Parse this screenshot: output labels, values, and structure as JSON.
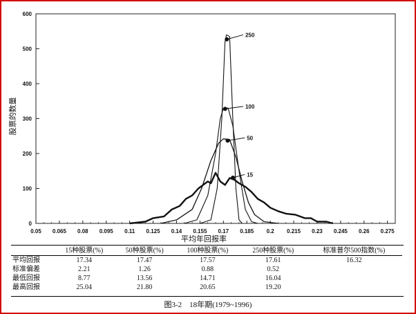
{
  "chart_data": {
    "type": "line",
    "xlabel": "平均年回报率",
    "ylabel": "股票的数量",
    "x_ticks": [
      "0.05",
      "0.065",
      "0.08",
      "0.095",
      "0.11",
      "0.125",
      "0.14",
      "0.155",
      "0.17",
      "0.185",
      "0.2",
      "0.215",
      "0.23",
      "0.245",
      "0.26",
      "0.275"
    ],
    "ylim": [
      0,
      600
    ],
    "y_ticks": [
      0,
      100,
      200,
      300,
      400,
      500,
      600
    ],
    "series": [
      {
        "name": "250",
        "points": [
          [
            0.155,
            0
          ],
          [
            0.162,
            10
          ],
          [
            0.166,
            100
          ],
          [
            0.169,
            300
          ],
          [
            0.171,
            520
          ],
          [
            0.172,
            540
          ],
          [
            0.174,
            535
          ],
          [
            0.176,
            300
          ],
          [
            0.178,
            100
          ],
          [
            0.18,
            10
          ],
          [
            0.182,
            0
          ]
        ]
      },
      {
        "name": "100",
        "points": [
          [
            0.145,
            0
          ],
          [
            0.153,
            10
          ],
          [
            0.16,
            80
          ],
          [
            0.165,
            200
          ],
          [
            0.168,
            300
          ],
          [
            0.17,
            330
          ],
          [
            0.173,
            330
          ],
          [
            0.176,
            280
          ],
          [
            0.18,
            150
          ],
          [
            0.184,
            40
          ],
          [
            0.188,
            5
          ],
          [
            0.192,
            0
          ]
        ]
      },
      {
        "name": "50",
        "points": [
          [
            0.13,
            0
          ],
          [
            0.14,
            10
          ],
          [
            0.15,
            40
          ],
          [
            0.156,
            100
          ],
          [
            0.162,
            180
          ],
          [
            0.167,
            230
          ],
          [
            0.17,
            242
          ],
          [
            0.174,
            240
          ],
          [
            0.178,
            190
          ],
          [
            0.182,
            120
          ],
          [
            0.186,
            60
          ],
          [
            0.19,
            25
          ],
          [
            0.196,
            5
          ],
          [
            0.205,
            0
          ]
        ]
      },
      {
        "name": "15",
        "points": [
          [
            0.11,
            0
          ],
          [
            0.12,
            5
          ],
          [
            0.125,
            15
          ],
          [
            0.132,
            20
          ],
          [
            0.137,
            40
          ],
          [
            0.142,
            50
          ],
          [
            0.146,
            70
          ],
          [
            0.15,
            80
          ],
          [
            0.154,
            100
          ],
          [
            0.157,
            110
          ],
          [
            0.16,
            120
          ],
          [
            0.162,
            115
          ],
          [
            0.165,
            145
          ],
          [
            0.168,
            120
          ],
          [
            0.171,
            110
          ],
          [
            0.174,
            130
          ],
          [
            0.177,
            125
          ],
          [
            0.18,
            115
          ],
          [
            0.184,
            105
          ],
          [
            0.188,
            90
          ],
          [
            0.192,
            70
          ],
          [
            0.196,
            60
          ],
          [
            0.2,
            45
          ],
          [
            0.205,
            35
          ],
          [
            0.21,
            28
          ],
          [
            0.216,
            25
          ],
          [
            0.222,
            15
          ],
          [
            0.226,
            15
          ],
          [
            0.23,
            5
          ],
          [
            0.236,
            5
          ],
          [
            0.24,
            0
          ]
        ]
      }
    ],
    "table": {
      "columns": [
        "",
        "15种股票(%)",
        "50种股票(%)",
        "100种股票(%)",
        "250种股票(%)",
        "标准普尔500指数(%)"
      ],
      "rows": [
        [
          "平均回报",
          "17.34",
          "17.47",
          "17.57",
          "17.61",
          "16.32"
        ],
        [
          "标准偏差",
          "2.21",
          "1.26",
          "0.88",
          "0.52",
          ""
        ],
        [
          "最低回报",
          "8.77",
          "13.56",
          "14.71",
          "16.04",
          ""
        ],
        [
          "最高回报",
          "25.04",
          "21.80",
          "20.65",
          "19.20",
          ""
        ]
      ]
    },
    "caption": "图3-2　18年期(1979~1996)"
  },
  "colors": {
    "frame": "#d40000",
    "ink": "#111111"
  }
}
